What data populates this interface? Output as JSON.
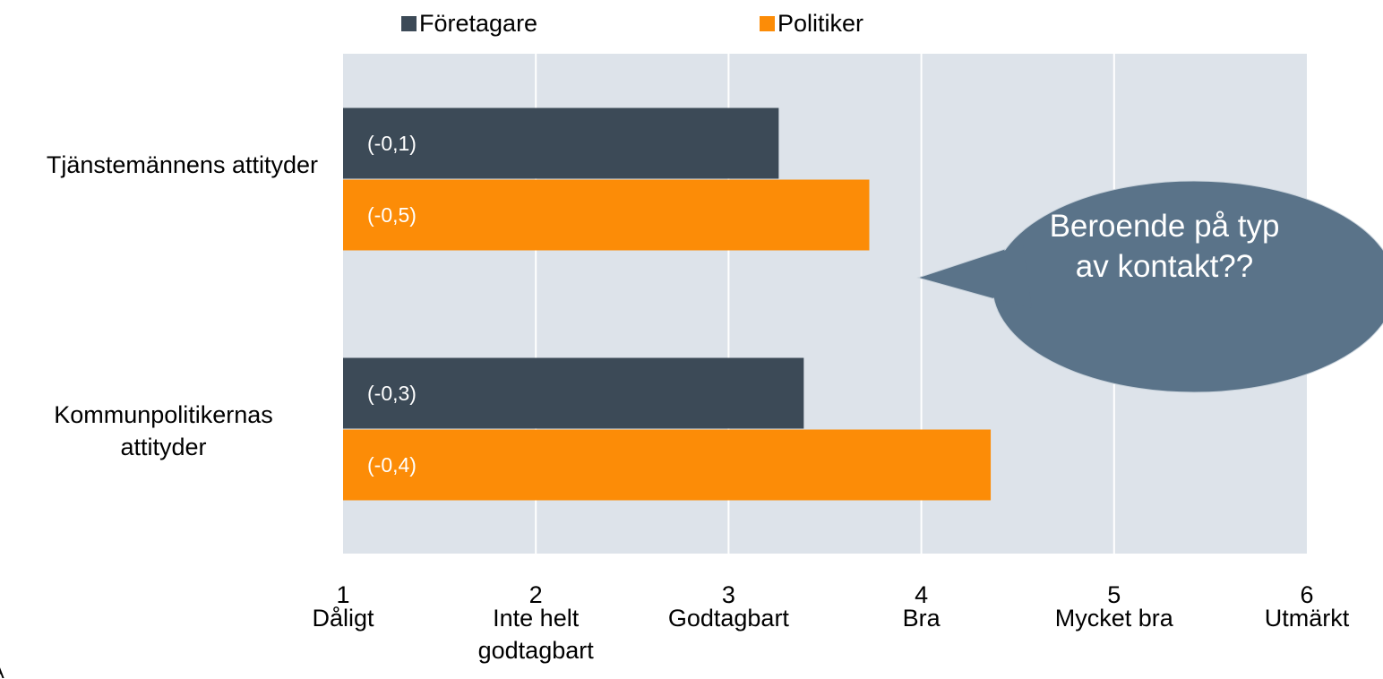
{
  "chart_data": {
    "type": "barh",
    "categories": [
      "Tjänstemännens attityder",
      "Kommunpolitikernas attityder"
    ],
    "series": [
      {
        "name": "Företagare",
        "color": "#3c4a57",
        "values": [
          3.26,
          3.39
        ],
        "bar_labels": [
          "(-0,1)",
          "(-0,3)"
        ]
      },
      {
        "name": "Politiker",
        "color": "#fc8c07",
        "values": [
          3.73,
          4.36
        ],
        "bar_labels": [
          "(-0,5)",
          "(-0,4)"
        ]
      }
    ],
    "xlim": [
      1,
      6
    ],
    "xticks": [
      1,
      2,
      3,
      4,
      5,
      6
    ],
    "xtick_descriptions": [
      "Dåligt",
      "Inte helt godtagbart",
      "Godtagbart",
      "Bra",
      "Mycket bra",
      "Utmärkt"
    ],
    "grid": true,
    "legend": "top",
    "callout": "Beroende på typ av kontakt??",
    "corner_text": "A"
  }
}
